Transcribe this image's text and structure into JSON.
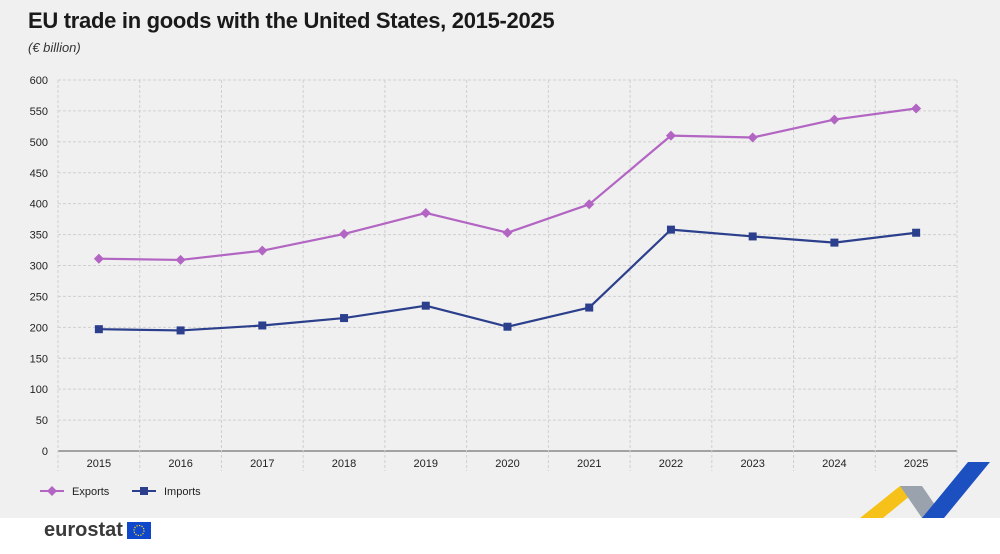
{
  "chart_data": {
    "type": "line",
    "title": "EU trade in goods with the United States, 2015-2025",
    "subtitle": "(€ billion)",
    "categories": [
      "2015",
      "2016",
      "2017",
      "2018",
      "2019",
      "2020",
      "2021",
      "2022",
      "2023",
      "2024",
      "2025"
    ],
    "ylim": [
      0,
      600
    ],
    "yticks": [
      0,
      50,
      100,
      150,
      200,
      250,
      300,
      350,
      400,
      450,
      500,
      550,
      600
    ],
    "grid": true,
    "legend_position": "bottom-left",
    "series": [
      {
        "name": "Exports",
        "color": "#b265c2",
        "marker": "diamond",
        "values": [
          311,
          309,
          324,
          351,
          385,
          353,
          399,
          510,
          507,
          536,
          554
        ]
      },
      {
        "name": "Imports",
        "color": "#2b3f8c",
        "marker": "square",
        "values": [
          197,
          195,
          203,
          215,
          235,
          201,
          232,
          358,
          347,
          337,
          353
        ]
      }
    ]
  },
  "branding": {
    "logo_text": "eurostat"
  }
}
